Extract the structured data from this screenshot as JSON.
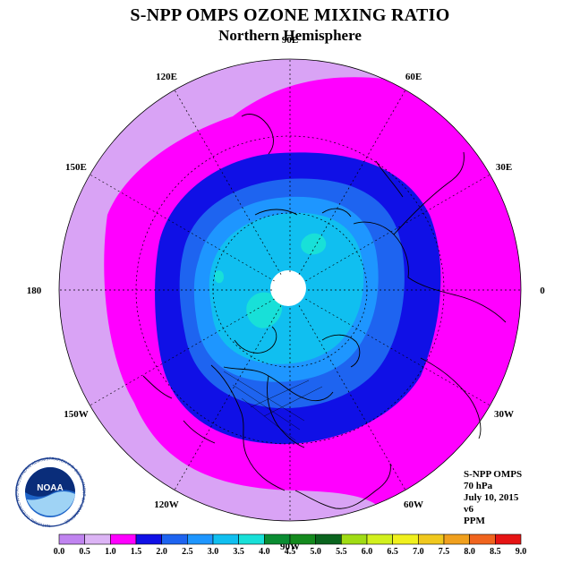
{
  "header": {
    "title": "S-NPP OMPS OZONE MIXING RATIO",
    "subtitle": "Northern Hemisphere"
  },
  "map": {
    "projection": "north-polar-stereographic",
    "longitude_labels": [
      "90E",
      "60E",
      "30E",
      "0",
      "30W",
      "60W",
      "90W",
      "120W",
      "150W",
      "180",
      "150E",
      "120E"
    ],
    "zone_colors": {
      "outer": "#d9a3f5",
      "ring_1_0": "#ff00ff",
      "ring_1_5": "#1010e6",
      "ring_2_0": "#1e64f0",
      "ring_2_5": "#1e96ff",
      "ring_3_0": "#10bff0",
      "ring_3_5": "#18e0d8",
      "pole_gap": "#ffffff"
    }
  },
  "info": {
    "instrument": "S-NPP OMPS",
    "level": "70 hPa",
    "date": "July 10, 2015",
    "version": "v6",
    "units": "PPM"
  },
  "colorbar": {
    "ticks": [
      "0.0",
      "0.5",
      "1.0",
      "1.5",
      "2.0",
      "2.5",
      "3.0",
      "3.5",
      "4.0",
      "4.5",
      "5.0",
      "5.5",
      "6.0",
      "6.5",
      "7.0",
      "7.5",
      "8.0",
      "8.5",
      "9.0"
    ],
    "colors": [
      "#c084f0",
      "#dcb4f5",
      "#ff00ff",
      "#1010e6",
      "#1e64f0",
      "#1e96ff",
      "#10bff0",
      "#18e0d8",
      "#0a8c32",
      "#148a1e",
      "#0a641e",
      "#a0dc14",
      "#d2f01e",
      "#f0f01e",
      "#f0c81e",
      "#f0a01e",
      "#f0641e",
      "#e61414",
      "#8c5a32"
    ]
  },
  "logo": {
    "name": "NOAA",
    "ring_text": "NATIONAL OCEANIC AND ATMOSPHERIC ADMINISTRATION U.S. DEPARTMENT OF COMMERCE"
  }
}
